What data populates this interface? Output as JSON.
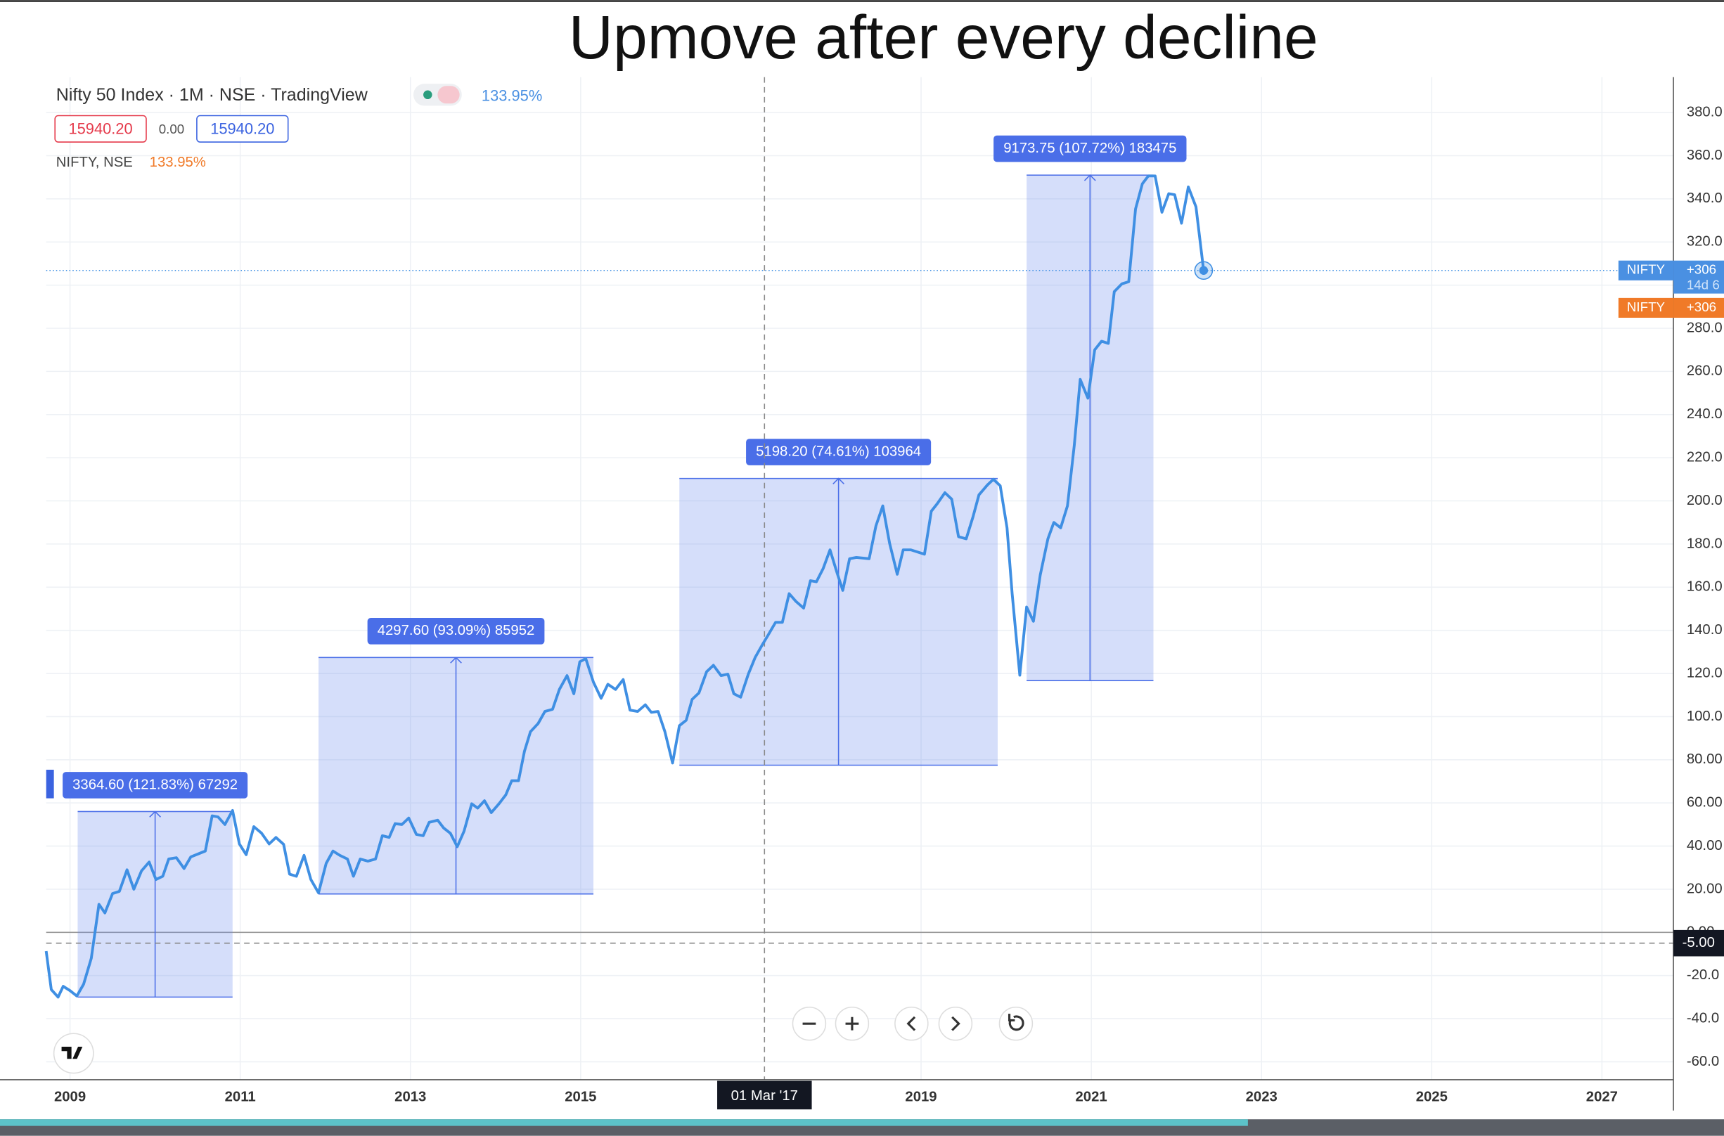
{
  "chart_data": {
    "type": "line",
    "title": "Upmove after every decline",
    "header": {
      "symbol": "Nifty 50 Index · 1M · NSE · TradingView",
      "change": "133.95%",
      "sell": "15940.20",
      "spread": "0.00",
      "buy": "15940.20"
    },
    "series": [
      {
        "name": "NIFTY, NSE",
        "change": "133.95%",
        "color": "#3f8fe3",
        "x": [
          2008.72,
          2008.78,
          2008.86,
          2008.92,
          2009.0,
          2009.08,
          2009.16,
          2009.25,
          2009.34,
          2009.41,
          2009.5,
          2009.58,
          2009.67,
          2009.75,
          2009.84,
          2009.93,
          2010.01,
          2010.09,
          2010.16,
          2010.25,
          2010.34,
          2010.42,
          2010.59,
          2010.67,
          2010.74,
          2010.82,
          2010.91,
          2010.99,
          2011.07,
          2011.16,
          2011.25,
          2011.34,
          2011.42,
          2011.51,
          2011.58,
          2011.66,
          2011.75,
          2011.83,
          2011.92,
          2012.01,
          2012.09,
          2012.17,
          2012.26,
          2012.33,
          2012.41,
          2012.5,
          2012.59,
          2012.67,
          2012.75,
          2012.82,
          2012.9,
          2012.98,
          2013.07,
          2013.15,
          2013.22,
          2013.32,
          2013.39,
          2013.47,
          2013.55,
          2013.63,
          2013.72,
          2013.79,
          2013.87,
          2013.95,
          2014.04,
          2014.12,
          2014.19,
          2014.27,
          2014.34,
          2014.41,
          2014.5,
          2014.58,
          2014.67,
          2014.75,
          2014.84,
          2014.92,
          2014.99,
          2015.06,
          2015.15,
          2015.24,
          2015.32,
          2015.41,
          2015.5,
          2015.58,
          2015.67,
          2015.76,
          2015.83,
          2015.91,
          2015.99,
          2016.08,
          2016.16,
          2016.24,
          2016.31,
          2016.39,
          2016.48,
          2016.56,
          2016.65,
          2016.73,
          2016.8,
          2016.88,
          2016.97,
          2017.05,
          2017.13,
          2017.2,
          2017.29,
          2017.37,
          2017.45,
          2017.53,
          2017.62,
          2017.7,
          2017.77,
          2017.85,
          2017.93,
          2018.01,
          2018.08,
          2018.16,
          2018.24,
          2018.39,
          2018.47,
          2018.55,
          2018.63,
          2018.72,
          2018.79,
          2018.88,
          2019.04,
          2019.12,
          2019.19,
          2019.28,
          2019.36,
          2019.44,
          2019.53,
          2019.61,
          2019.68,
          2019.78,
          2019.85,
          2019.93,
          2020.01,
          2020.07,
          2020.16,
          2020.24,
          2020.32,
          2020.4,
          2020.49,
          2020.56,
          2020.64,
          2020.72,
          2020.8,
          2020.87,
          2020.96,
          2021.04,
          2021.12,
          2021.2,
          2021.27,
          2021.36,
          2021.44,
          2021.52,
          2021.6,
          2021.67,
          2021.75,
          2021.83,
          2021.91,
          2021.98,
          2022.06,
          2022.14,
          2022.23,
          2022.32
        ],
        "values": [
          -8.7,
          -26.5,
          -30,
          -25,
          -27,
          -29.5,
          -24,
          -12,
          13,
          9,
          18,
          19,
          29,
          20,
          28.5,
          32.6,
          24.5,
          26,
          34,
          34.6,
          29.6,
          35,
          37.7,
          54,
          53.5,
          50,
          56.5,
          41,
          36,
          49,
          46,
          41,
          44,
          40.8,
          27,
          26,
          35.7,
          24.5,
          18.3,
          32,
          37.7,
          35.7,
          34,
          26,
          34,
          33,
          34,
          44.8,
          44,
          50.4,
          50,
          53,
          45.4,
          44.8,
          51,
          52,
          48.4,
          45.9,
          39.7,
          46.9,
          59.6,
          57.6,
          61,
          55.5,
          59.6,
          63.7,
          70.3,
          70.3,
          84,
          93,
          96.8,
          102.4,
          103.4,
          112.6,
          119,
          110.6,
          125.4,
          126.9,
          116,
          108.5,
          115,
          112.6,
          117.2,
          103,
          102.4,
          105.5,
          102,
          102.4,
          93,
          78.5,
          95.8,
          98.3,
          108,
          111,
          120.8,
          123.8,
          119,
          119.7,
          110.6,
          109,
          119.7,
          127.4,
          133,
          137.6,
          143.7,
          143.7,
          157,
          153.4,
          150.3,
          163,
          162.5,
          168.7,
          177.3,
          167,
          158.5,
          173.2,
          173.8,
          173.2,
          188.5,
          197.7,
          180.4,
          166,
          177.3,
          177.3,
          175.3,
          195.2,
          198.7,
          203.8,
          200.8,
          183.4,
          182.4,
          192.6,
          202.8,
          207.4,
          210,
          207,
          187.5,
          157,
          119.2,
          150.8,
          144.2,
          165.6,
          182.4,
          190,
          187.5,
          197.7,
          225.7,
          256.3,
          247.6,
          270,
          274,
          273,
          297,
          300.6,
          301.6,
          335.3,
          347,
          350.6,
          350.6,
          333.8,
          342.4,
          341.9,
          328.7,
          345.5,
          336.3,
          306.8
        ]
      }
    ],
    "measures": [
      {
        "label": "3364.60 (121.83%) 67292",
        "x0": 2009.09,
        "x1": 2010.91,
        "y0": -30,
        "y1": 56
      },
      {
        "label": "4297.60 (93.09%) 85952",
        "x0": 2011.92,
        "x1": 2015.15,
        "y0": 17.8,
        "y1": 127.4
      },
      {
        "label": "5198.20 (74.61%) 103964",
        "x0": 2016.16,
        "x1": 2019.9,
        "y0": 77.5,
        "y1": 210.4
      },
      {
        "label": "9173.75 (107.72%) 183475",
        "x0": 2020.24,
        "x1": 2021.73,
        "y0": 116.7,
        "y1": 351
      }
    ],
    "crosshair": {
      "x": 2017.16,
      "y": -5,
      "x_label": "01 Mar '17",
      "y_label": "-5.00"
    },
    "price_tags": [
      {
        "name": "NIFTY",
        "value": "+306",
        "countdown": "14d 6",
        "color": "#4a90e2"
      },
      {
        "name": "NIFTY",
        "value": "+306",
        "color": "#f07a28"
      }
    ],
    "xlim": [
      2008.72,
      2027.84
    ],
    "ylim": [
      -68.3,
      396.4
    ],
    "xticks": [
      2009,
      2011,
      2013,
      2015,
      2019,
      2021,
      2023,
      2025,
      2027
    ],
    "yticks": [
      {
        "value": 380,
        "label": "380.0"
      },
      {
        "value": 360,
        "label": "360.0"
      },
      {
        "value": 340,
        "label": "340.0"
      },
      {
        "value": 320,
        "label": "320.0"
      },
      {
        "value": 300,
        "label": "300.0"
      },
      {
        "value": 280,
        "label": "280.0"
      },
      {
        "value": 260,
        "label": "260.0"
      },
      {
        "value": 240,
        "label": "240.0"
      },
      {
        "value": 220,
        "label": "220.0"
      },
      {
        "value": 200,
        "label": "200.0"
      },
      {
        "value": 180,
        "label": "180.0"
      },
      {
        "value": 160,
        "label": "160.0"
      },
      {
        "value": 140,
        "label": "140.0"
      },
      {
        "value": 120,
        "label": "120.0"
      },
      {
        "value": 100,
        "label": "100.0"
      },
      {
        "value": 80,
        "label": "80.00"
      },
      {
        "value": 60,
        "label": "60.00"
      },
      {
        "value": 40,
        "label": "40.00"
      },
      {
        "value": 20,
        "label": "20.00"
      },
      {
        "value": 0,
        "label": "0.00"
      },
      {
        "value": -20,
        "label": "-20.0"
      },
      {
        "value": -40,
        "label": "-40.0"
      },
      {
        "value": -60,
        "label": "-60.0"
      }
    ],
    "grid": true
  }
}
